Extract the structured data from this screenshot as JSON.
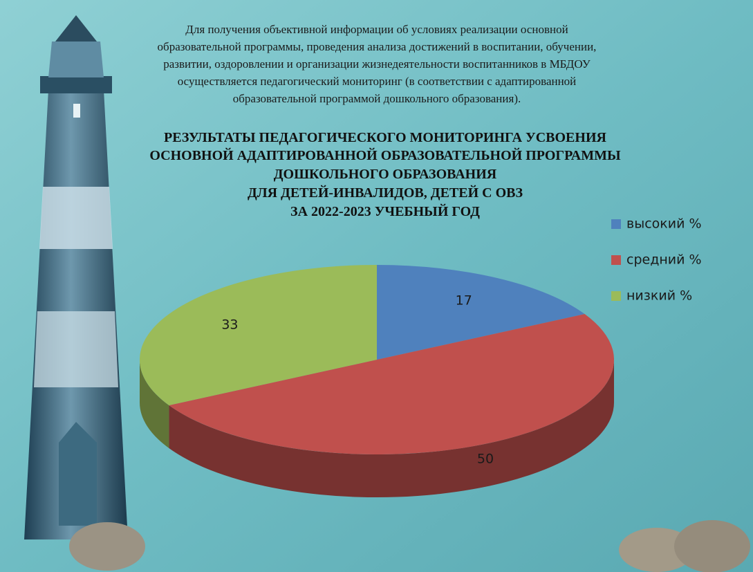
{
  "intro": [
    "Для получения объективной информации об условиях реализации основной",
    "образовательной программы, проведения анализа достижений в воспитании, обучении,",
    "развитии, оздоровлении и организации жизнедеятельности воспитанников в МБДОУ",
    "осуществляется педагогический мониторинг (в соответствии с адаптированной",
    "образовательной программой дошкольного образования)."
  ],
  "chart_data": {
    "type": "pie3d",
    "title": [
      "РЕЗУЛЬТАТЫ ПЕДАГОГИЧЕСКОГО МОНИТОРИНГА УСВОЕНИЯ",
      "ОСНОВНОЙ АДАПТИРОВАННОЙ ОБРАЗОВАТЕЛЬНОЙ ПРОГРАММЫ",
      "ДОШКОЛЬНОГО ОБРАЗОВАНИЯ",
      "ДЛЯ ДЕТЕЙ-ИНВАЛИДОВ, ДЕТЕЙ С ОВЗ",
      "ЗА 2022-2023 УЧЕБНЫЙ ГОД"
    ],
    "categories": [
      "высокий %",
      "средний %",
      "низкий %"
    ],
    "values": [
      17,
      50,
      33
    ],
    "colors": [
      "#4f81bd",
      "#c0504d",
      "#9bbb59"
    ],
    "legend": "right"
  }
}
